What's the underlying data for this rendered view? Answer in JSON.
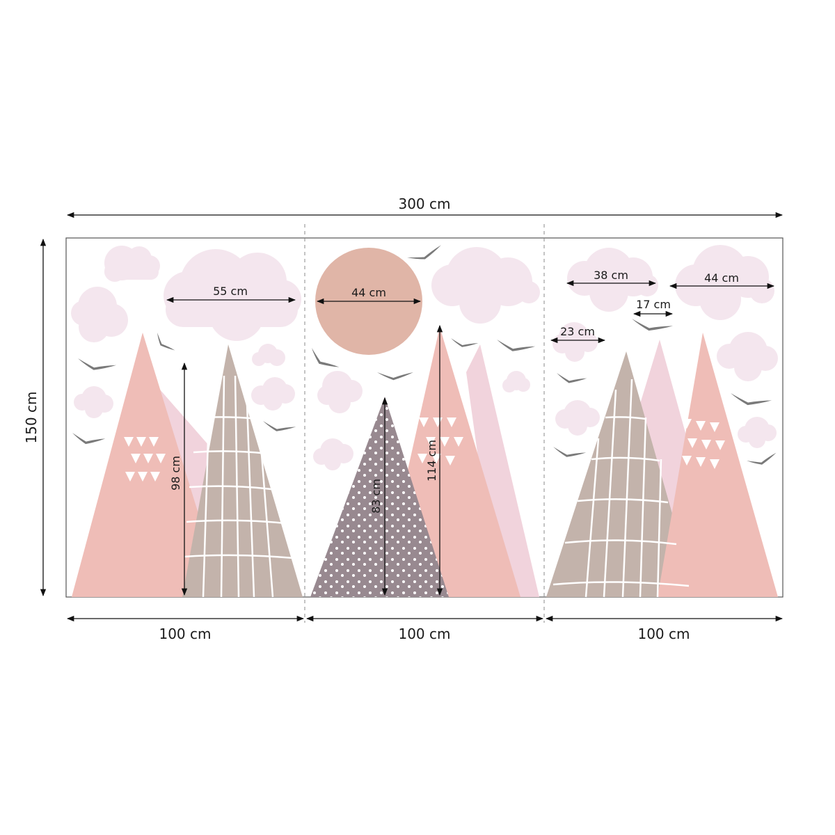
{
  "colors": {
    "cloud": "#f4e6ee",
    "sun": "#e0b5a7",
    "pink_mountain": "#efbdb7",
    "light_pink_mountain": "#f1d3dc",
    "taupe_mountain": "#c3b3ab",
    "mauve_mountain": "#988990",
    "bird": "#7a7a7a",
    "dimension_line": "#111111",
    "frame": "#555555"
  },
  "dimensions": {
    "total_width": "300 cm",
    "total_height": "150 cm",
    "panel_1_width": "100 cm",
    "panel_2_width": "100 cm",
    "panel_3_width": "100 cm"
  },
  "measurements": {
    "cloud_large_left": "55 cm",
    "sun_diameter": "44 cm",
    "cloud_right_a": "38 cm",
    "cloud_right_b": "44 cm",
    "cloud_small_a": "17 cm",
    "cloud_small_b": "23 cm",
    "mountain_left_height": "98 cm",
    "mountain_dotted_height": "83 cm",
    "mountain_center_height": "114 cm"
  }
}
